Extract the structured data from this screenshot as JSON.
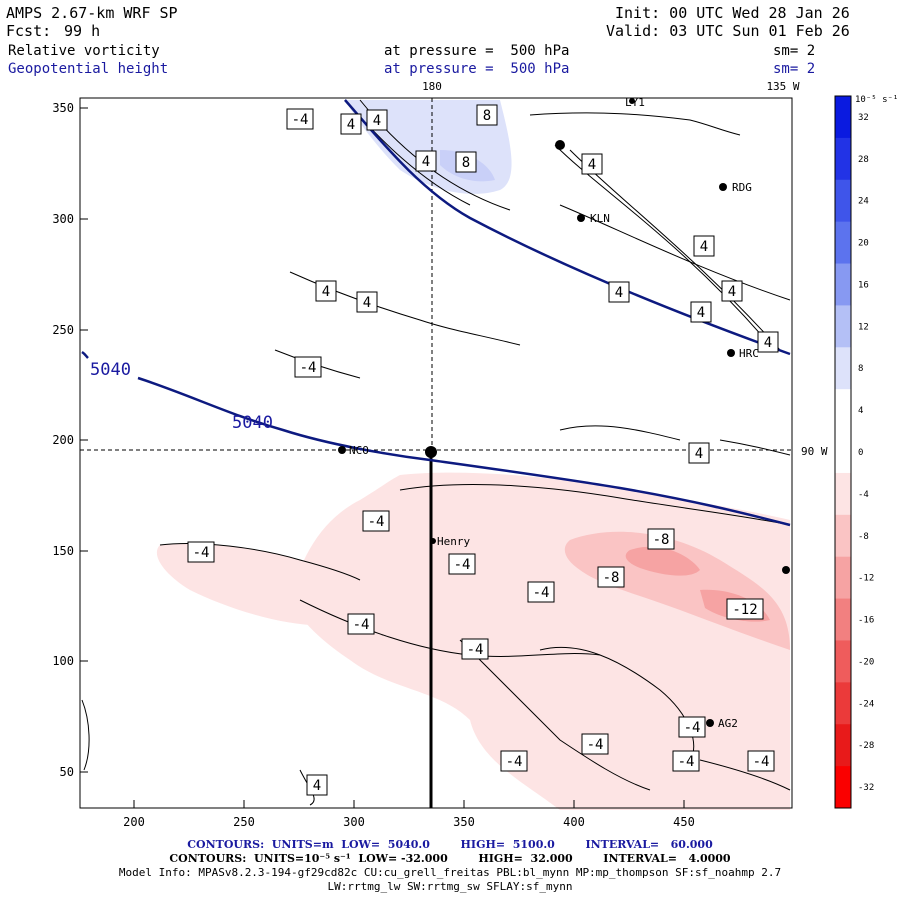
{
  "header": {
    "model": "AMPS 2.67-km WRF SP",
    "fcst_label": "Fcst:",
    "fcst_value": "99 h",
    "init": "Init: 00 UTC Wed 28 Jan 26",
    "valid": "Valid: 03 UTC Sun 01 Feb 26",
    "field1": "Relative vorticity",
    "field1_level": "at pressure =  500 hPa",
    "field1_sm": "sm= 2",
    "field2": "Geopotential height",
    "field2_level": "at pressure =  500 hPa",
    "field2_sm": "sm= 2"
  },
  "map": {
    "top_labels": [
      "180",
      "135 W"
    ],
    "right_label": "90 W",
    "x_ticks": [
      "200",
      "250",
      "300",
      "350",
      "400",
      "450"
    ],
    "y_ticks": [
      "50",
      "100",
      "150",
      "200",
      "250",
      "300",
      "350"
    ],
    "height_labels": [
      "5040",
      "5040"
    ],
    "vort_labels_pos": [
      "4",
      "4",
      "4",
      "8",
      "4",
      "8",
      "4",
      "4",
      "4",
      "4",
      "4",
      "4",
      "4",
      "4",
      "4",
      "4"
    ],
    "vort_labels_neg": [
      "-4",
      "-4",
      "-4",
      "-4",
      "-4",
      "-4",
      "-4",
      "-4",
      "-4",
      "-8",
      "-8",
      "-12",
      "-4",
      "-4",
      "-4",
      "-4",
      "-4"
    ],
    "stations": [
      "RDG",
      "KLN",
      "HRC",
      "NCO",
      "Henry",
      "AG2"
    ],
    "partial_station": "LY1"
  },
  "colorbar": {
    "unit_label": "10⁻⁵ s⁻¹",
    "ticks": [
      "32",
      "28",
      "24",
      "20",
      "16",
      "12",
      "8",
      "4",
      "0",
      "-4",
      "-8",
      "-12",
      "-16",
      "-20",
      "-24",
      "-28",
      "-32"
    ],
    "colors": [
      "#0a1ae0",
      "#2233e6",
      "#3f55ea",
      "#5c73ee",
      "#8799f2",
      "#b4c0f6",
      "#dde2fa",
      "#ffffff",
      "#ffffff",
      "#fde4e4",
      "#fac4c4",
      "#f6a3a3",
      "#f28080",
      "#ef5c5c",
      "#eb3a3a",
      "#e81a1a",
      "#fa0000"
    ]
  },
  "footer": {
    "line1": "CONTOURS:  UNITS=m  LOW=  5040.0        HIGH=  5100.0        INTERVAL=   60.000",
    "line2": "CONTOURS:  UNITS=10⁻⁵ s⁻¹  LOW= -32.000        HIGH=  32.000        INTERVAL=   4.0000",
    "line3": "Model Info: MPASv8.2.3-194-gf29cd82c CU:cu_grell_freitas PBL:bl_mynn MP:mp_thompson SF:sf_noahmp 2.7",
    "line4": "LW:rrtmg_lw SW:rrtmg_sw SFLAY:sf_mynn"
  },
  "colors": {
    "height_line": "#0d1a80",
    "text_blue": "#1a1aa0"
  }
}
